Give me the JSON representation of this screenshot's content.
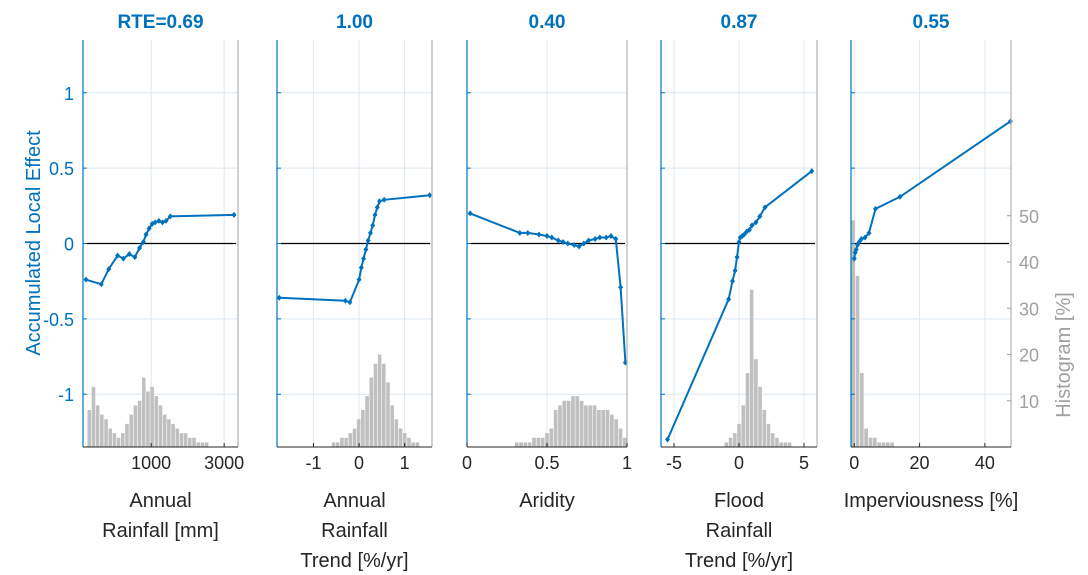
{
  "figure": {
    "ylabel_left": "Accumulated Local Effect",
    "ylabel_right": "Histogram [%]",
    "colors": {
      "line": "#0072BD",
      "hist": "#C0C0C0",
      "title": "#0072BD",
      "zero_line": "#000000",
      "grid": "#DCE8F0",
      "axis_text": "#262626",
      "right_axis_text": "#A0A0A0"
    }
  },
  "chart_data": [
    {
      "type": "line",
      "title": "RTE=0.69",
      "xlabel_lines": [
        "Annual",
        "Rainfall [mm]"
      ],
      "x_scale": "sqrt",
      "xlim": [
        100,
        3500
      ],
      "x_ticks": [
        1000,
        3000
      ],
      "x_tick_labels": [
        "1000",
        "3000"
      ],
      "ylim": [
        -1.35,
        1.35
      ],
      "y_ticks": [
        -1,
        -0.5,
        0,
        0.5,
        1
      ],
      "y_tick_labels": [
        "-1",
        "-0.5",
        "0",
        "0.5",
        "1"
      ],
      "grid": true,
      "x": [
        120,
        250,
        330,
        440,
        520,
        610,
        700,
        780,
        850,
        900,
        960,
        1020,
        1080,
        1160,
        1240,
        1320,
        1420,
        3350
      ],
      "y": [
        -0.24,
        -0.27,
        -0.17,
        -0.08,
        -0.1,
        -0.07,
        -0.09,
        -0.03,
        0.01,
        0.06,
        0.1,
        0.13,
        0.14,
        0.15,
        0.14,
        0.15,
        0.18,
        0.19
      ],
      "histogram": [
        0,
        8,
        13,
        9,
        7,
        6,
        4,
        3,
        2,
        3,
        5,
        7,
        9,
        10,
        15,
        12,
        13,
        11,
        9,
        7,
        6,
        5,
        4,
        3,
        3,
        2,
        2,
        1,
        1,
        1,
        0,
        0,
        0,
        0,
        0,
        0,
        0
      ]
    },
    {
      "type": "line",
      "title": "1.00",
      "xlabel_lines": [
        "Annual",
        "Rainfall",
        "Trend [%/yr]"
      ],
      "xlim": [
        -1.8,
        1.6
      ],
      "x_ticks": [
        -1,
        0,
        1
      ],
      "x_tick_labels": [
        "-1",
        "0",
        "1"
      ],
      "ylim": [
        -1.35,
        1.35
      ],
      "y_ticks": [
        -1,
        -0.5,
        0,
        0.5,
        1
      ],
      "grid": true,
      "x": [
        -1.75,
        -0.3,
        -0.2,
        0.0,
        0.05,
        0.1,
        0.15,
        0.2,
        0.25,
        0.3,
        0.35,
        0.4,
        0.45,
        0.55,
        1.55
      ],
      "y": [
        -0.36,
        -0.38,
        -0.39,
        -0.24,
        -0.16,
        -0.1,
        -0.04,
        0.02,
        0.07,
        0.12,
        0.19,
        0.24,
        0.28,
        0.29,
        0.32
      ],
      "histogram": [
        0,
        0,
        0,
        0,
        0,
        0,
        0,
        0,
        0,
        0,
        0,
        0,
        0,
        1,
        1,
        2,
        2,
        3,
        4,
        6,
        8,
        11,
        15,
        18,
        20,
        18,
        14,
        9,
        6,
        4,
        3,
        2,
        1,
        1,
        0,
        0,
        0
      ]
    },
    {
      "type": "line",
      "title": "0.40",
      "xlabel_lines": [
        "Aridity"
      ],
      "xlim": [
        0,
        1
      ],
      "x_ticks": [
        0,
        0.5,
        1
      ],
      "x_tick_labels": [
        "0",
        "0.5",
        "1"
      ],
      "ylim": [
        -1.35,
        1.35
      ],
      "y_ticks": [
        -1,
        -0.5,
        0,
        0.5,
        1
      ],
      "grid": true,
      "x": [
        0.02,
        0.33,
        0.38,
        0.45,
        0.5,
        0.53,
        0.57,
        0.6,
        0.63,
        0.67,
        0.7,
        0.73,
        0.76,
        0.8,
        0.83,
        0.87,
        0.9,
        0.93,
        0.96,
        0.99
      ],
      "y": [
        0.2,
        0.07,
        0.07,
        0.06,
        0.05,
        0.04,
        0.02,
        0.01,
        0.0,
        -0.01,
        -0.02,
        0.0,
        0.02,
        0.03,
        0.04,
        0.04,
        0.05,
        0.03,
        -0.29,
        -0.79
      ],
      "histogram": [
        0,
        0,
        0,
        0,
        0,
        0,
        0,
        0,
        0,
        0,
        0,
        1,
        1,
        1,
        1,
        2,
        2,
        2,
        3,
        4,
        8,
        9,
        10,
        10,
        11,
        11,
        10,
        9,
        9,
        9,
        8,
        8,
        8,
        7,
        6,
        4,
        2
      ]
    },
    {
      "type": "line",
      "title": "0.87",
      "xlabel_lines": [
        "Flood",
        "Rainfall",
        "Trend [%/yr]"
      ],
      "xlim": [
        -6,
        6
      ],
      "x_ticks": [
        -5,
        0,
        5
      ],
      "x_tick_labels": [
        "-5",
        "0",
        "5"
      ],
      "ylim": [
        -1.35,
        1.35
      ],
      "y_ticks": [
        -1,
        -0.5,
        0,
        0.5,
        1
      ],
      "grid": true,
      "x": [
        -5.5,
        -0.8,
        -0.5,
        -0.3,
        -0.15,
        0.0,
        0.1,
        0.25,
        0.4,
        0.6,
        0.8,
        1.0,
        1.3,
        1.6,
        2.0,
        5.6
      ],
      "y": [
        -1.3,
        -0.37,
        -0.25,
        -0.18,
        -0.09,
        0.01,
        0.04,
        0.05,
        0.06,
        0.08,
        0.09,
        0.12,
        0.14,
        0.18,
        0.24,
        0.48
      ],
      "histogram": [
        0,
        0,
        0,
        0,
        0,
        0,
        0,
        0,
        0,
        0,
        0,
        0,
        0,
        0,
        0,
        1,
        2,
        3,
        5,
        9,
        16,
        34,
        19,
        13,
        8,
        5,
        3,
        2,
        1,
        1,
        1,
        0,
        0,
        0,
        0,
        0,
        0
      ]
    },
    {
      "type": "line",
      "title": "0.55",
      "xlabel_lines": [
        "Imperviousness [%]"
      ],
      "xlim": [
        -1,
        48
      ],
      "x_ticks": [
        0,
        20,
        40
      ],
      "x_tick_labels": [
        "0",
        "20",
        "40"
      ],
      "ylim": [
        -1.35,
        1.35
      ],
      "y_ticks": [
        -1,
        -0.5,
        0,
        0.5,
        1
      ],
      "y2_ticks": [
        10,
        20,
        30,
        40,
        50
      ],
      "y2_tick_labels": [
        "10",
        "20",
        "30",
        "40",
        "50"
      ],
      "grid": true,
      "x": [
        0.0,
        0.3,
        0.6,
        1.0,
        1.5,
        2.2,
        3.3,
        4.5,
        6.5,
        14,
        47.8
      ],
      "y": [
        -0.1,
        -0.06,
        -0.04,
        -0.01,
        0.01,
        0.03,
        0.04,
        0.07,
        0.23,
        0.31,
        0.81
      ],
      "histogram": [
        49,
        37,
        16,
        4,
        2,
        2,
        1,
        1,
        1,
        1,
        0,
        0,
        0,
        0,
        0,
        0,
        0,
        0,
        0,
        0,
        0,
        0,
        0,
        0,
        0,
        0,
        0,
        0,
        0,
        0,
        0,
        0,
        0,
        0,
        0,
        0,
        0
      ]
    }
  ]
}
